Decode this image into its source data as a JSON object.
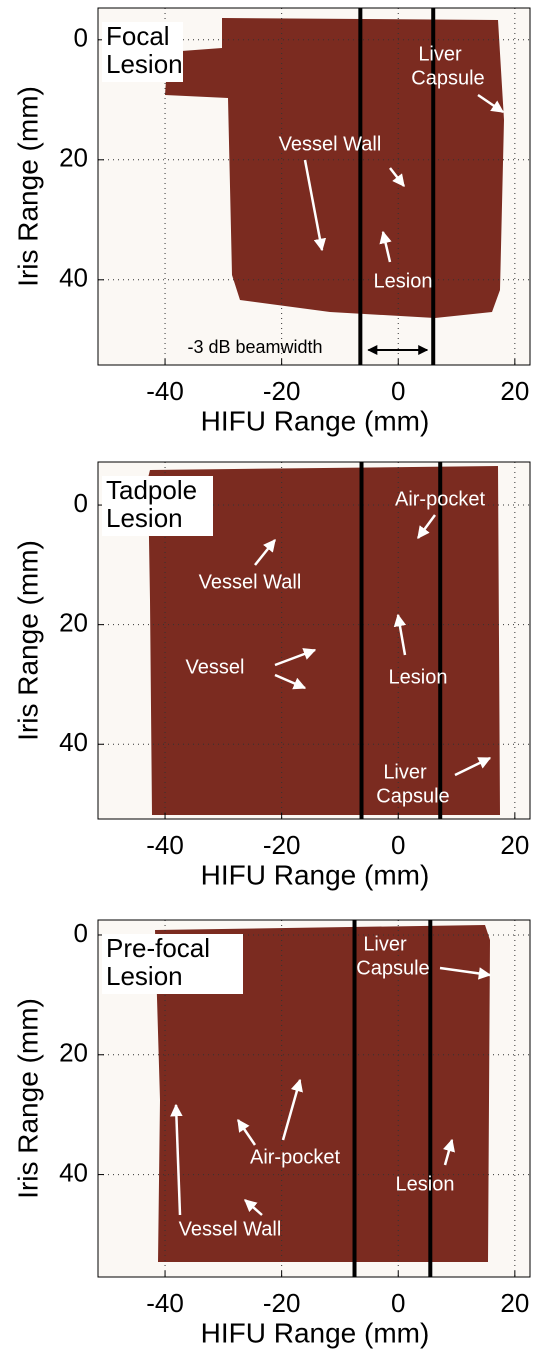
{
  "chart_data": [
    {
      "type": "image",
      "label": [
        "Focal",
        "Lesion"
      ],
      "x_label": "HIFU Range (mm)",
      "y_label": "Iris Range (mm)",
      "xlim": [
        -51.5,
        22.6
      ],
      "ylim": [
        54.2,
        -5.3
      ],
      "xticks": [
        -40,
        -20,
        0,
        20
      ],
      "yticks": [
        0,
        20,
        40
      ],
      "beam_lines": [
        -6.5,
        6.0
      ],
      "annotations": [
        {
          "text": [
            "Liver",
            "Capsule"
          ]
        },
        {
          "text": [
            "Vessel Wall"
          ]
        },
        {
          "text": [
            "Lesion"
          ]
        },
        {
          "text": [
            "-3 dB beamwidth"
          ]
        }
      ]
    },
    {
      "type": "image",
      "label": [
        "Tadpole",
        "Lesion"
      ],
      "x_label": "HIFU Range (mm)",
      "y_label": "Iris Range (mm)",
      "xlim": [
        -51.5,
        22.6
      ],
      "ylim": [
        52.5,
        -7.2
      ],
      "xticks": [
        -40,
        -20,
        0,
        20
      ],
      "yticks": [
        0,
        20,
        40
      ],
      "beam_lines": [
        -6.3,
        7.2
      ],
      "annotations": [
        {
          "text": [
            "Air-pocket"
          ]
        },
        {
          "text": [
            "Vessel Wall"
          ]
        },
        {
          "text": [
            "Vessel"
          ]
        },
        {
          "text": [
            "Lesion"
          ]
        },
        {
          "text": [
            "Liver",
            "Capsule"
          ]
        }
      ]
    },
    {
      "type": "image",
      "label": [
        "Pre-focal",
        "Lesion"
      ],
      "x_label": "HIFU Range (mm)",
      "y_label": "Iris Range (mm)",
      "xlim": [
        -51.5,
        22.6
      ],
      "ylim": [
        57.1,
        -2.5
      ],
      "xticks": [
        -40,
        -20,
        0,
        20
      ],
      "yticks": [
        0,
        20,
        40
      ],
      "beam_lines": [
        -7.5,
        5.5
      ],
      "annotations": [
        {
          "text": [
            "Liver",
            "Capsule"
          ]
        },
        {
          "text": [
            "Air-pocket"
          ]
        },
        {
          "text": [
            "Vessel Wall"
          ]
        },
        {
          "text": [
            "Lesion"
          ]
        }
      ]
    }
  ]
}
